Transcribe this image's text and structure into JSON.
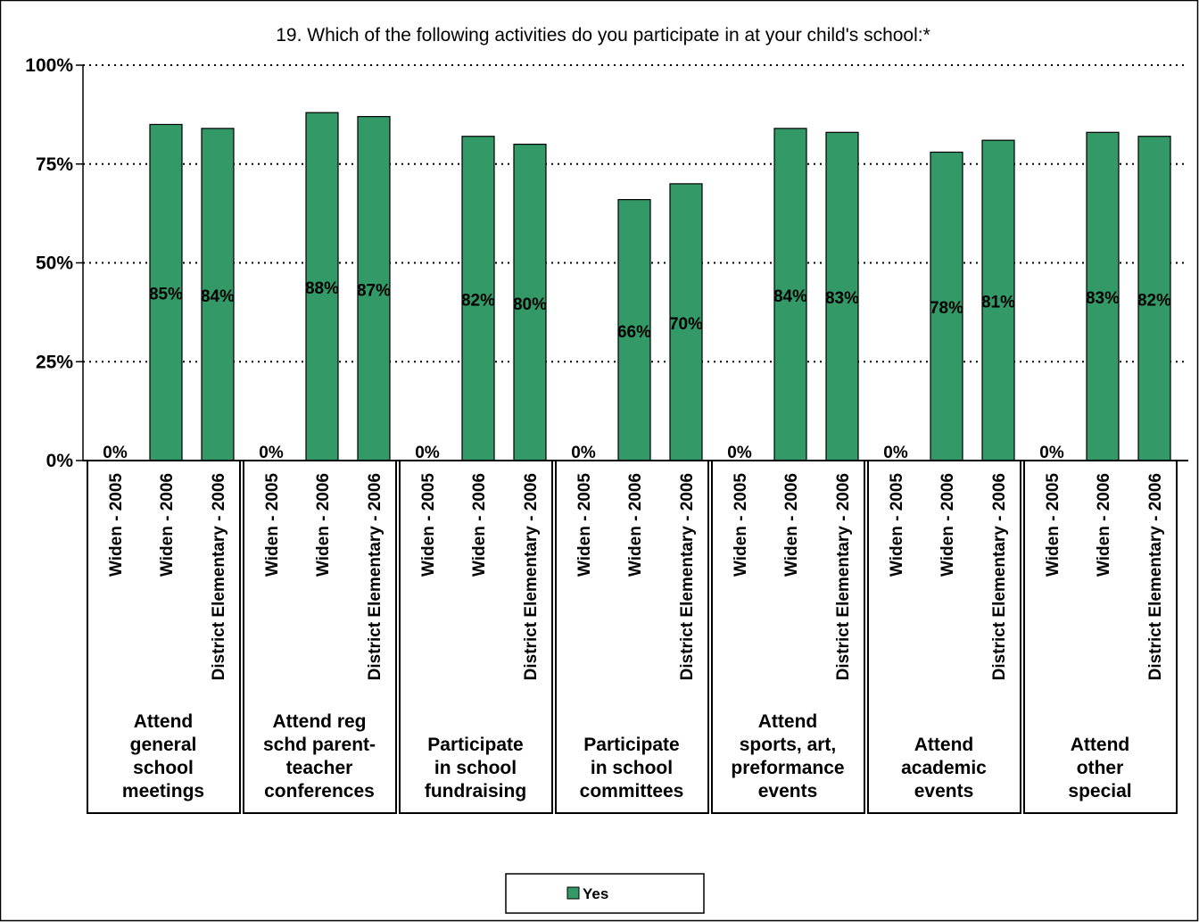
{
  "chart_data": {
    "type": "bar",
    "title": "19. Which of the following activities do you participate in at your child's school:*",
    "xlabel": "",
    "ylabel": "",
    "ylim": [
      0,
      100
    ],
    "yticks": [
      "0%",
      "25%",
      "50%",
      "75%",
      "100%"
    ],
    "grid": "horizontal-dotted",
    "legend": "bottom-center",
    "bar_color": "#339966",
    "groups": [
      {
        "label_lines": [
          "Attend",
          "general",
          "school",
          "meetings"
        ]
      },
      {
        "label_lines": [
          "Attend reg",
          "schd parent-",
          "teacher",
          "conferences"
        ]
      },
      {
        "label_lines": [
          "Participate",
          "in school",
          "fundraising"
        ]
      },
      {
        "label_lines": [
          "Participate",
          "in school",
          "committees"
        ]
      },
      {
        "label_lines": [
          "Attend",
          "sports, art,",
          "preformance",
          "events"
        ]
      },
      {
        "label_lines": [
          "Attend",
          "academic",
          "events"
        ]
      },
      {
        "label_lines": [
          "Attend",
          "other",
          "special"
        ]
      }
    ],
    "subcategories": [
      "Widen - 2005",
      "Widen - 2006",
      "District Elementary - 2006"
    ],
    "series": [
      {
        "name": "Yes",
        "values": [
          [
            0,
            85,
            84
          ],
          [
            0,
            88,
            87
          ],
          [
            0,
            82,
            80
          ],
          [
            0,
            66,
            70
          ],
          [
            0,
            84,
            83
          ],
          [
            0,
            78,
            81
          ],
          [
            0,
            83,
            82
          ]
        ],
        "labels": [
          [
            "0%",
            "85%",
            "84%"
          ],
          [
            "0%",
            "88%",
            "87%"
          ],
          [
            "0%",
            "82%",
            "80%"
          ],
          [
            "0%",
            "66%",
            "70%"
          ],
          [
            "0%",
            "84%",
            "83%"
          ],
          [
            "0%",
            "78%",
            "81%"
          ],
          [
            "0%",
            "83%",
            "82%"
          ]
        ]
      }
    ]
  }
}
